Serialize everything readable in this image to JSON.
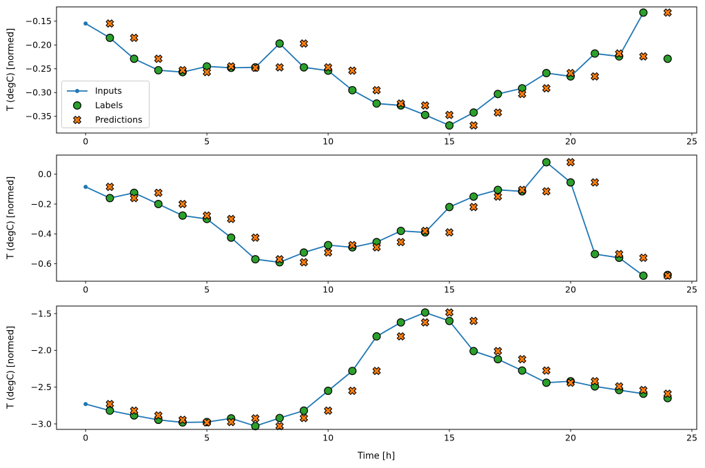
{
  "figure": {
    "xlabel": "Time [h]",
    "ylabel": "T (degC) [normed]",
    "legend": {
      "position": "upper-left-of-first-subplot",
      "items": [
        {
          "label": "Inputs",
          "type": "line-dot",
          "color": "#1f77b4"
        },
        {
          "label": "Labels",
          "type": "circle",
          "color": "#2ca02c"
        },
        {
          "label": "Predictions",
          "type": "x",
          "color": "#ff7f0e"
        }
      ]
    },
    "colors": {
      "inputs_line": "#1f77b4",
      "labels_fill": "#2ca02c",
      "predictions_fill": "#ff7f0e",
      "marker_edge": "#000000",
      "axes_frame": "#000000",
      "legend_border": "#cccccc"
    }
  },
  "chart_data": [
    {
      "type": "line",
      "subplot": 1,
      "ylabel": "T (degC) [normed]",
      "xlim": [
        -1.2,
        25.2
      ],
      "ylim": [
        -0.385,
        -0.12
      ],
      "xticks": [
        0,
        5,
        10,
        15,
        20,
        25
      ],
      "xtick_labels": [
        "0",
        "5",
        "10",
        "15",
        "20",
        "25"
      ],
      "yticks": [
        -0.15,
        -0.2,
        -0.25,
        -0.3,
        -0.35
      ],
      "ytick_labels": [
        "−0.15",
        "−0.20",
        "−0.25",
        "−0.30",
        "−0.35"
      ],
      "grid": false,
      "series": [
        {
          "name": "Inputs",
          "marker": "dot",
          "color": "#1f77b4",
          "x": [
            0,
            1,
            2,
            3,
            4,
            5,
            6,
            7,
            8,
            9,
            10,
            11,
            12,
            13,
            14,
            15,
            16,
            17,
            18,
            19,
            20,
            21,
            22,
            23
          ],
          "y": [
            -0.155,
            -0.185,
            -0.229,
            -0.253,
            -0.257,
            -0.245,
            -0.248,
            -0.247,
            -0.197,
            -0.247,
            -0.254,
            -0.295,
            -0.323,
            -0.327,
            -0.347,
            -0.369,
            -0.342,
            -0.303,
            -0.291,
            -0.259,
            -0.266,
            -0.218,
            -0.224,
            -0.132
          ]
        },
        {
          "name": "Labels",
          "marker": "circle",
          "color": "#2ca02c",
          "x": [
            1,
            2,
            3,
            4,
            5,
            6,
            7,
            8,
            9,
            10,
            11,
            12,
            13,
            14,
            15,
            16,
            17,
            18,
            19,
            20,
            21,
            22,
            23,
            24
          ],
          "y": [
            -0.185,
            -0.229,
            -0.253,
            -0.257,
            -0.245,
            -0.248,
            -0.247,
            -0.197,
            -0.247,
            -0.254,
            -0.295,
            -0.323,
            -0.327,
            -0.347,
            -0.369,
            -0.342,
            -0.303,
            -0.291,
            -0.259,
            -0.266,
            -0.218,
            -0.224,
            -0.132,
            -0.229
          ]
        },
        {
          "name": "Predictions",
          "marker": "X",
          "color": "#ff7f0e",
          "x": [
            1,
            2,
            3,
            4,
            5,
            6,
            7,
            8,
            9,
            10,
            11,
            12,
            13,
            14,
            15,
            16,
            17,
            18,
            19,
            20,
            21,
            22,
            23,
            24
          ],
          "y": [
            -0.155,
            -0.185,
            -0.229,
            -0.253,
            -0.257,
            -0.245,
            -0.248,
            -0.247,
            -0.197,
            -0.247,
            -0.254,
            -0.295,
            -0.323,
            -0.327,
            -0.347,
            -0.369,
            -0.342,
            -0.303,
            -0.291,
            -0.259,
            -0.266,
            -0.218,
            -0.224,
            -0.132
          ]
        }
      ]
    },
    {
      "type": "line",
      "subplot": 2,
      "ylabel": "T (degC) [normed]",
      "xlim": [
        -1.2,
        25.2
      ],
      "ylim": [
        -0.717,
        0.128
      ],
      "xticks": [
        0,
        5,
        10,
        15,
        20,
        25
      ],
      "xtick_labels": [
        "0",
        "5",
        "10",
        "15",
        "20",
        "25"
      ],
      "yticks": [
        0.0,
        -0.2,
        -0.4,
        -0.6
      ],
      "ytick_labels": [
        "0.0",
        "−0.2",
        "−0.4",
        "−0.6"
      ],
      "grid": false,
      "series": [
        {
          "name": "Inputs",
          "marker": "dot",
          "color": "#1f77b4",
          "x": [
            0,
            1,
            2,
            3,
            4,
            5,
            6,
            7,
            8,
            9,
            10,
            11,
            12,
            13,
            14,
            15,
            16,
            17,
            18,
            19,
            20,
            21,
            22,
            23
          ],
          "y": [
            -0.085,
            -0.16,
            -0.125,
            -0.2,
            -0.277,
            -0.3,
            -0.425,
            -0.57,
            -0.59,
            -0.525,
            -0.475,
            -0.49,
            -0.455,
            -0.38,
            -0.39,
            -0.22,
            -0.15,
            -0.105,
            -0.115,
            0.08,
            -0.055,
            -0.535,
            -0.56,
            -0.68
          ]
        },
        {
          "name": "Labels",
          "marker": "circle",
          "color": "#2ca02c",
          "x": [
            1,
            2,
            3,
            4,
            5,
            6,
            7,
            8,
            9,
            10,
            11,
            12,
            13,
            14,
            15,
            16,
            17,
            18,
            19,
            20,
            21,
            22,
            23,
            24
          ],
          "y": [
            -0.16,
            -0.125,
            -0.2,
            -0.277,
            -0.3,
            -0.425,
            -0.57,
            -0.59,
            -0.525,
            -0.475,
            -0.49,
            -0.455,
            -0.38,
            -0.39,
            -0.22,
            -0.15,
            -0.105,
            -0.115,
            0.08,
            -0.055,
            -0.535,
            -0.56,
            -0.68,
            -0.675
          ]
        },
        {
          "name": "Predictions",
          "marker": "X",
          "color": "#ff7f0e",
          "x": [
            1,
            2,
            3,
            4,
            5,
            6,
            7,
            8,
            9,
            10,
            11,
            12,
            13,
            14,
            15,
            16,
            17,
            18,
            19,
            20,
            21,
            22,
            23,
            24
          ],
          "y": [
            -0.085,
            -0.16,
            -0.125,
            -0.2,
            -0.277,
            -0.3,
            -0.425,
            -0.57,
            -0.59,
            -0.525,
            -0.475,
            -0.49,
            -0.455,
            -0.38,
            -0.39,
            -0.22,
            -0.15,
            -0.105,
            -0.115,
            0.08,
            -0.055,
            -0.535,
            -0.56,
            -0.68
          ]
        }
      ]
    },
    {
      "type": "line",
      "subplot": 3,
      "xlabel": "Time [h]",
      "ylabel": "T (degC) [normed]",
      "xlim": [
        -1.2,
        25.2
      ],
      "ylim": [
        -3.075,
        -1.397
      ],
      "xticks": [
        0,
        5,
        10,
        15,
        20,
        25
      ],
      "xtick_labels": [
        "0",
        "5",
        "10",
        "15",
        "20",
        "25"
      ],
      "yticks": [
        -1.5,
        -2.0,
        -2.5,
        -3.0
      ],
      "ytick_labels": [
        "−1.5",
        "−2.0",
        "−2.5",
        "−3.0"
      ],
      "grid": false,
      "series": [
        {
          "name": "Inputs",
          "marker": "dot",
          "color": "#1f77b4",
          "x": [
            0,
            1,
            2,
            3,
            4,
            5,
            6,
            7,
            8,
            9,
            10,
            11,
            12,
            13,
            14,
            15,
            16,
            17,
            18,
            19,
            20,
            21,
            22,
            23
          ],
          "y": [
            -2.73,
            -2.82,
            -2.885,
            -2.945,
            -2.98,
            -2.975,
            -2.925,
            -3.03,
            -2.92,
            -2.82,
            -2.55,
            -2.28,
            -1.81,
            -1.62,
            -1.485,
            -1.6,
            -2.01,
            -2.12,
            -2.275,
            -2.44,
            -2.42,
            -2.49,
            -2.54,
            -2.59
          ]
        },
        {
          "name": "Labels",
          "marker": "circle",
          "color": "#2ca02c",
          "x": [
            1,
            2,
            3,
            4,
            5,
            6,
            7,
            8,
            9,
            10,
            11,
            12,
            13,
            14,
            15,
            16,
            17,
            18,
            19,
            20,
            21,
            22,
            23,
            24
          ],
          "y": [
            -2.82,
            -2.885,
            -2.945,
            -2.98,
            -2.975,
            -2.925,
            -3.03,
            -2.92,
            -2.82,
            -2.55,
            -2.28,
            -1.81,
            -1.62,
            -1.485,
            -1.6,
            -2.01,
            -2.12,
            -2.275,
            -2.44,
            -2.42,
            -2.49,
            -2.54,
            -2.59,
            -2.65
          ]
        },
        {
          "name": "Predictions",
          "marker": "X",
          "color": "#ff7f0e",
          "x": [
            1,
            2,
            3,
            4,
            5,
            6,
            7,
            8,
            9,
            10,
            11,
            12,
            13,
            14,
            15,
            16,
            17,
            18,
            19,
            20,
            21,
            22,
            23,
            24
          ],
          "y": [
            -2.73,
            -2.82,
            -2.885,
            -2.945,
            -2.98,
            -2.975,
            -2.925,
            -3.03,
            -2.92,
            -2.82,
            -2.55,
            -2.28,
            -1.81,
            -1.62,
            -1.485,
            -1.6,
            -2.01,
            -2.12,
            -2.275,
            -2.44,
            -2.42,
            -2.49,
            -2.54,
            -2.59
          ]
        }
      ]
    }
  ]
}
